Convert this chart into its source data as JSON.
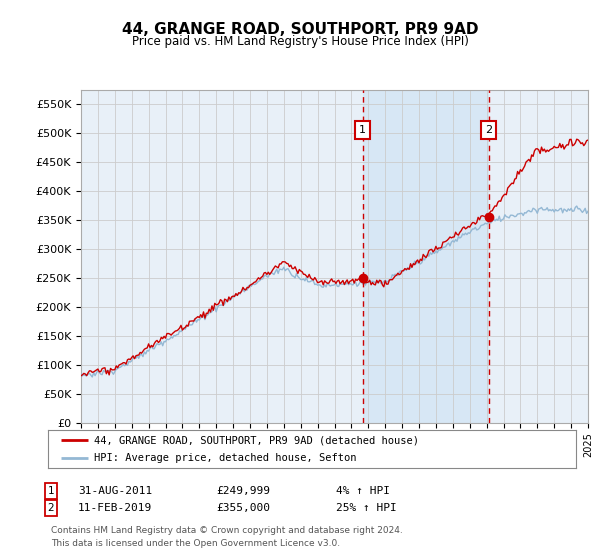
{
  "title": "44, GRANGE ROAD, SOUTHPORT, PR9 9AD",
  "subtitle": "Price paid vs. HM Land Registry's House Price Index (HPI)",
  "ylabel_ticks": [
    "£0",
    "£50K",
    "£100K",
    "£150K",
    "£200K",
    "£250K",
    "£300K",
    "£350K",
    "£400K",
    "£450K",
    "£500K",
    "£550K"
  ],
  "ytick_values": [
    0,
    50000,
    100000,
    150000,
    200000,
    250000,
    300000,
    350000,
    400000,
    450000,
    500000,
    550000
  ],
  "ylim": [
    0,
    575000
  ],
  "x_start_year": 1995,
  "x_end_year": 2025,
  "sale1_date": 2011.67,
  "sale1_price": 249999,
  "sale2_date": 2019.12,
  "sale2_price": 355000,
  "hpi_color": "#94b8d4",
  "sale_line_color": "#cc0000",
  "shade_color": "#d0e4f4",
  "grid_color": "#cccccc",
  "background_color": "#e8f0f8",
  "legend_property_label": "44, GRANGE ROAD, SOUTHPORT, PR9 9AD (detached house)",
  "legend_hpi_label": "HPI: Average price, detached house, Sefton",
  "footer": "Contains HM Land Registry data © Crown copyright and database right 2024.\nThis data is licensed under the Open Government Licence v3.0."
}
